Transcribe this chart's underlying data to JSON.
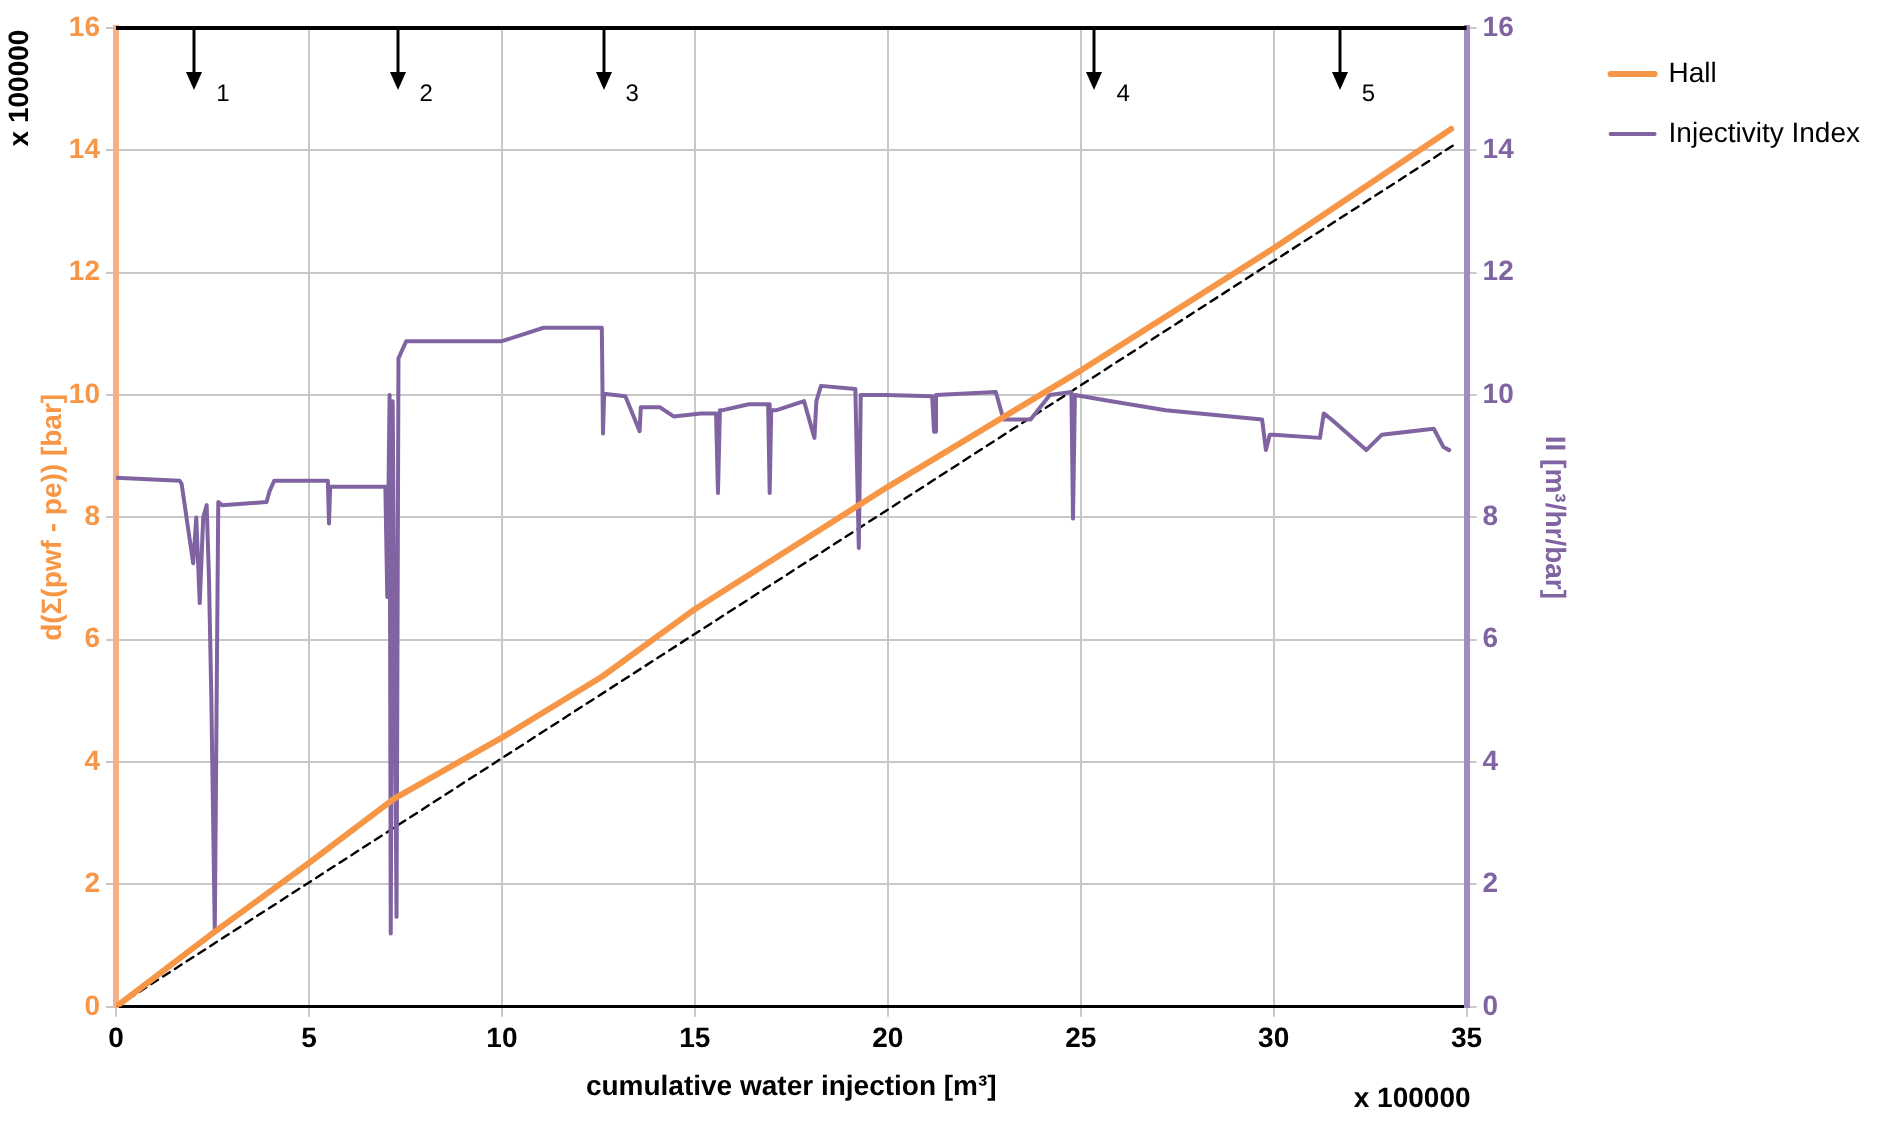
{
  "chart_data": {
    "type": "line",
    "xlabel": "cumulative water injection [m³]",
    "ylabel": "d(Σ(pwf - pe)) [bar]",
    "y2label": "II [m³/hr/bar]",
    "xlim": [
      0,
      35
    ],
    "xticks": [
      0,
      5,
      10,
      15,
      20,
      25,
      30,
      35
    ],
    "ylim": [
      0,
      16
    ],
    "yticks": [
      0,
      2,
      4,
      6,
      8,
      10,
      12,
      14,
      16
    ],
    "y2lim": [
      0,
      16
    ],
    "y2ticks": [
      0,
      2,
      4,
      6,
      8,
      10,
      12,
      14,
      16
    ],
    "grid": true,
    "legend": "top right",
    "marker": "none",
    "annotations": [
      "x 100000",
      "x 100000",
      "1",
      "2",
      "3",
      "4",
      "5"
    ],
    "series": [
      {
        "name": "Hall",
        "color": "#f79646",
        "x": [
          0,
          2.5,
          5,
          7.2,
          10,
          12.6,
          15,
          20,
          25,
          30,
          34.6
        ],
        "values": [
          0,
          1.2,
          2.35,
          3.4,
          4.4,
          5.4,
          6.5,
          8.5,
          10.4,
          12.4,
          14.35
        ]
      },
      {
        "name": "Injectivity Index",
        "color": "#8064a2",
        "axis": "y2",
        "x": [
          0,
          1.65,
          1.7,
          2.0,
          2.08,
          2.17,
          2.26,
          2.35,
          2.41,
          2.47,
          2.56,
          2.65,
          2.75,
          3.9,
          3.98,
          4.1,
          5.49,
          5.52,
          5.55,
          5.58,
          6.98,
          7.03,
          7.09,
          7.12,
          7.17,
          7.27,
          7.32,
          7.52,
          10.0,
          11.08,
          12.59,
          12.62,
          12.65,
          12.68,
          13.2,
          13.57,
          13.6,
          14.1,
          14.45,
          15.16,
          15.55,
          15.6,
          15.65,
          15.7,
          16.4,
          16.9,
          16.94,
          16.98,
          17.1,
          17.83,
          18.1,
          18.15,
          18.27,
          19.16,
          19.25,
          19.3,
          19.96,
          21.15,
          21.2,
          21.25,
          22.8,
          23.0,
          23.7,
          24.2,
          24.76,
          24.8,
          24.85,
          25.6,
          27.2,
          29.7,
          29.8,
          29.9,
          30.0,
          31.2,
          31.3,
          31.5,
          32.4,
          32.8,
          34.15,
          34.4,
          34.55
        ],
        "values": [
          8.65,
          8.6,
          8.55,
          7.25,
          8.0,
          6.6,
          8.0,
          8.2,
          7.0,
          5.06,
          1.24,
          8.25,
          8.2,
          8.25,
          8.43,
          8.6,
          8.6,
          7.9,
          8.5,
          8.5,
          8.5,
          6.7,
          10.0,
          1.2,
          9.9,
          1.47,
          10.6,
          10.88,
          10.88,
          11.1,
          11.1,
          9.37,
          10.02,
          10.02,
          9.98,
          9.41,
          9.8,
          9.8,
          9.65,
          9.7,
          9.7,
          8.4,
          9.75,
          9.75,
          9.85,
          9.85,
          8.4,
          9.75,
          9.75,
          9.9,
          9.3,
          9.9,
          10.15,
          10.1,
          7.5,
          10.0,
          10.0,
          9.98,
          9.4,
          10.0,
          10.05,
          9.6,
          9.6,
          10.0,
          10.05,
          7.98,
          10.0,
          9.92,
          9.75,
          9.6,
          9.1,
          9.35,
          9.35,
          9.3,
          9.7,
          9.6,
          9.1,
          9.35,
          9.45,
          9.15,
          9.1
        ]
      },
      {
        "color": "#000000",
        "line_style": "dashed",
        "x": [
          0,
          34.7
        ],
        "values": [
          0,
          14.1
        ]
      }
    ]
  }
}
